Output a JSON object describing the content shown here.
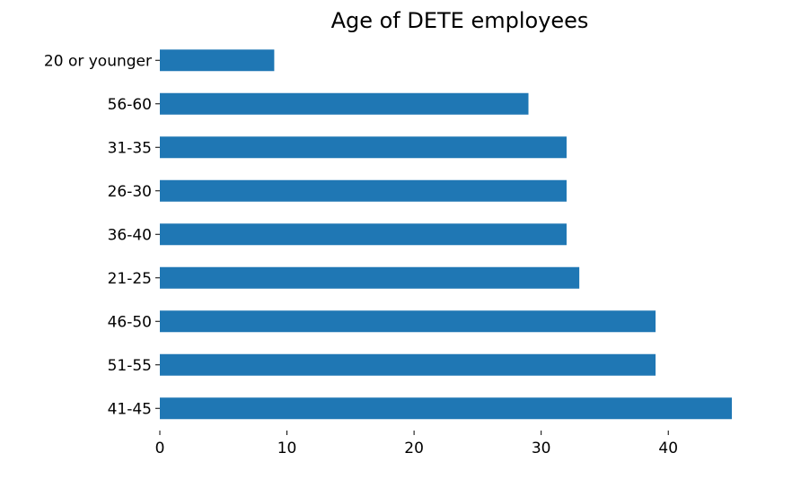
{
  "chart_data": {
    "type": "bar",
    "orientation": "horizontal",
    "title": "Age of DETE employees",
    "xlabel": "",
    "ylabel": "",
    "categories": [
      "20 or younger",
      "56-60",
      "31-35",
      "26-30",
      "36-40",
      "21-25",
      "46-50",
      "51-55",
      "41-45"
    ],
    "values": [
      9,
      29,
      32,
      32,
      32,
      33,
      39,
      39,
      45
    ],
    "xlim": [
      0,
      45
    ],
    "xticks": [
      0,
      10,
      20,
      30,
      40
    ],
    "xtick_labels": [
      "0",
      "10",
      "20",
      "30",
      "40"
    ],
    "grid": false,
    "legend": "none",
    "bar_color": "#1f77b4",
    "axis_color": "#000000"
  }
}
